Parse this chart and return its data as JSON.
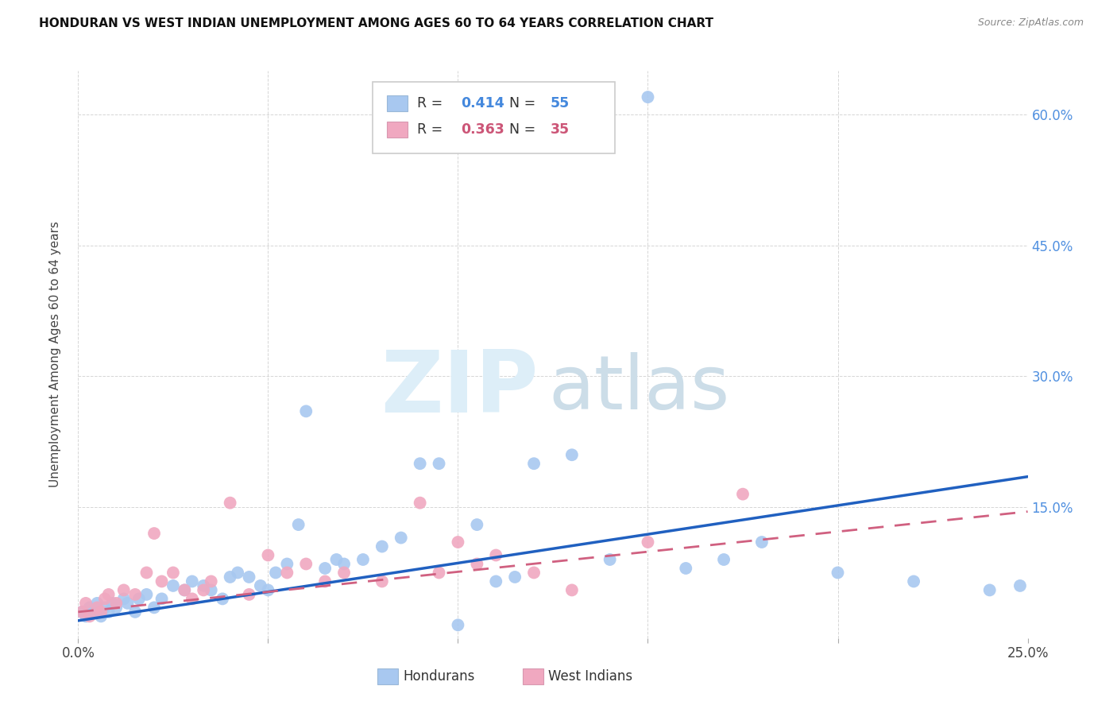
{
  "title": "HONDURAN VS WEST INDIAN UNEMPLOYMENT AMONG AGES 60 TO 64 YEARS CORRELATION CHART",
  "source": "Source: ZipAtlas.com",
  "ylabel": "Unemployment Among Ages 60 to 64 years",
  "xlim": [
    0.0,
    0.25
  ],
  "ylim": [
    0.0,
    0.65
  ],
  "xticks": [
    0.0,
    0.05,
    0.1,
    0.15,
    0.2,
    0.25
  ],
  "yticks": [
    0.0,
    0.15,
    0.3,
    0.45,
    0.6
  ],
  "honduran_R": "0.414",
  "honduran_N": "55",
  "west_indian_R": "0.363",
  "west_indian_N": "35",
  "honduran_color": "#a8c8f0",
  "west_indian_color": "#f0a8c0",
  "honduran_line_color": "#2060c0",
  "west_indian_line_color": "#d06080",
  "background_color": "#ffffff",
  "watermark_color": "#ddeef8",
  "honduran_line_x0": 0.0,
  "honduran_line_y0": 0.02,
  "honduran_line_x1": 0.25,
  "honduran_line_y1": 0.185,
  "west_indian_line_x0": 0.0,
  "west_indian_line_y0": 0.03,
  "west_indian_line_x1": 0.25,
  "west_indian_line_y1": 0.145,
  "honduran_x": [
    0.001,
    0.002,
    0.003,
    0.004,
    0.005,
    0.006,
    0.007,
    0.008,
    0.009,
    0.01,
    0.012,
    0.013,
    0.015,
    0.016,
    0.018,
    0.02,
    0.022,
    0.025,
    0.028,
    0.03,
    0.033,
    0.035,
    0.038,
    0.04,
    0.042,
    0.045,
    0.048,
    0.05,
    0.052,
    0.055,
    0.058,
    0.06,
    0.065,
    0.068,
    0.07,
    0.075,
    0.08,
    0.085,
    0.09,
    0.095,
    0.1,
    0.105,
    0.11,
    0.115,
    0.12,
    0.13,
    0.14,
    0.15,
    0.16,
    0.17,
    0.18,
    0.2,
    0.22,
    0.24,
    0.248
  ],
  "honduran_y": [
    0.03,
    0.025,
    0.035,
    0.03,
    0.04,
    0.025,
    0.035,
    0.03,
    0.04,
    0.035,
    0.045,
    0.04,
    0.03,
    0.045,
    0.05,
    0.035,
    0.045,
    0.06,
    0.055,
    0.065,
    0.06,
    0.055,
    0.045,
    0.07,
    0.075,
    0.07,
    0.06,
    0.055,
    0.075,
    0.085,
    0.13,
    0.26,
    0.08,
    0.09,
    0.085,
    0.09,
    0.105,
    0.115,
    0.2,
    0.2,
    0.015,
    0.13,
    0.065,
    0.07,
    0.2,
    0.21,
    0.09,
    0.62,
    0.08,
    0.09,
    0.11,
    0.075,
    0.065,
    0.055,
    0.06
  ],
  "west_indian_x": [
    0.001,
    0.002,
    0.003,
    0.005,
    0.006,
    0.007,
    0.008,
    0.01,
    0.012,
    0.015,
    0.018,
    0.02,
    0.022,
    0.025,
    0.028,
    0.03,
    0.033,
    0.035,
    0.04,
    0.045,
    0.05,
    0.055,
    0.06,
    0.065,
    0.07,
    0.08,
    0.09,
    0.095,
    0.1,
    0.105,
    0.11,
    0.12,
    0.13,
    0.15,
    0.175
  ],
  "west_indian_y": [
    0.03,
    0.04,
    0.025,
    0.035,
    0.03,
    0.045,
    0.05,
    0.04,
    0.055,
    0.05,
    0.075,
    0.12,
    0.065,
    0.075,
    0.055,
    0.045,
    0.055,
    0.065,
    0.155,
    0.05,
    0.095,
    0.075,
    0.085,
    0.065,
    0.075,
    0.065,
    0.155,
    0.075,
    0.11,
    0.085,
    0.095,
    0.075,
    0.055,
    0.11,
    0.165
  ]
}
